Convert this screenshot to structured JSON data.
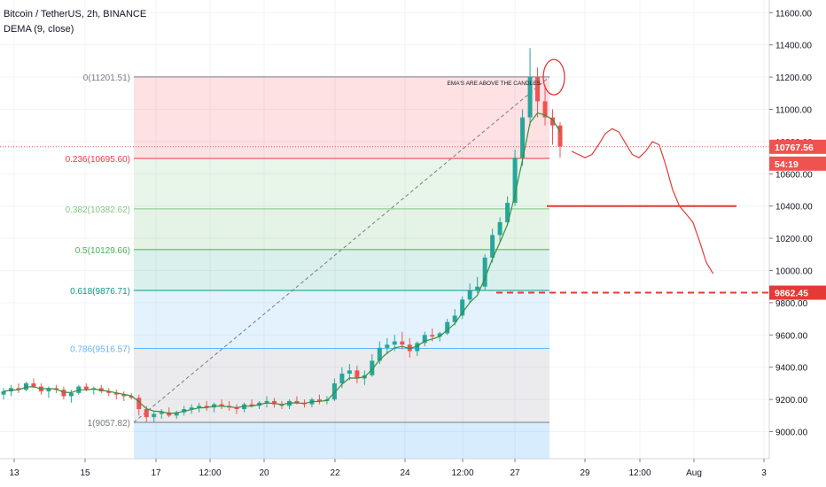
{
  "header": {
    "symbol": "Bitcoin / TetherUS, 2h, BINANCE",
    "indicator": "DEMA (9, close)"
  },
  "chart_data": {
    "type": "candlestick",
    "title": "Bitcoin / TetherUS, 2h, BINANCE",
    "indicator": "DEMA (9, close)",
    "ylim": [
      8880,
      11800
    ],
    "y_ticks": [
      "9000.00",
      "9200.00",
      "9400.00",
      "9600.00",
      "9800.00",
      "10000.00",
      "10200.00",
      "10400.00",
      "10600.00",
      "10800.00",
      "11000.00",
      "11200.00",
      "11400.00",
      "11600.00"
    ],
    "x_ticks": [
      "13",
      "15",
      "17",
      "12:00",
      "20",
      "22",
      "24",
      "12:00",
      "27",
      "29",
      "12:00",
      "Aug",
      "3"
    ],
    "price_label": "10767.56",
    "countdown_label": "54:19",
    "target_label": "9862.45",
    "price_line": 10767.56,
    "target_line": 9862.45,
    "support_line": 10400,
    "fib_levels": [
      {
        "ratio": "0",
        "price": 11201.51,
        "label": "0(11201.51)",
        "color": "#787b86"
      },
      {
        "ratio": "0.236",
        "price": 10695.6,
        "label": "0.236(10695.60)",
        "color": "#f23645"
      },
      {
        "ratio": "0.382",
        "price": 10382.62,
        "label": "0.382(10382.62)",
        "color": "#81c784"
      },
      {
        "ratio": "0.5",
        "price": 10129.66,
        "label": "0.5(10129.66)",
        "color": "#4caf50"
      },
      {
        "ratio": "0.618",
        "price": 9876.71,
        "label": "0.618(9876.71)",
        "color": "#089981"
      },
      {
        "ratio": "0.786",
        "price": 9516.57,
        "label": "0.786(9516.57)",
        "color": "#64b5f6"
      },
      {
        "ratio": "1",
        "price": 9057.82,
        "label": "1(9057.82)",
        "color": "#787b86"
      }
    ],
    "annotation": "EMA'S ARE ABOVE THE CANDLES",
    "price_path": [
      [
        9230,
        9270,
        9200,
        9250
      ],
      [
        9250,
        9290,
        9220,
        9270
      ],
      [
        9270,
        9300,
        9240,
        9260
      ],
      [
        9260,
        9310,
        9250,
        9300
      ],
      [
        9300,
        9330,
        9270,
        9280
      ],
      [
        9280,
        9300,
        9230,
        9250
      ],
      [
        9250,
        9280,
        9210,
        9270
      ],
      [
        9270,
        9290,
        9240,
        9260
      ],
      [
        9260,
        9280,
        9200,
        9220
      ],
      [
        9220,
        9260,
        9180,
        9240
      ],
      [
        9240,
        9290,
        9230,
        9280
      ],
      [
        9280,
        9300,
        9250,
        9260
      ],
      [
        9260,
        9280,
        9230,
        9270
      ],
      [
        9270,
        9290,
        9240,
        9250
      ],
      [
        9250,
        9270,
        9220,
        9240
      ],
      [
        9240,
        9260,
        9200,
        9230
      ],
      [
        9230,
        9250,
        9190,
        9220
      ],
      [
        9220,
        9240,
        9200,
        9210
      ],
      [
        9210,
        9230,
        9100,
        9140
      ],
      [
        9140,
        9160,
        9060,
        9090
      ],
      [
        9090,
        9130,
        9060,
        9110
      ],
      [
        9110,
        9140,
        9080,
        9120
      ],
      [
        9120,
        9150,
        9090,
        9100
      ],
      [
        9100,
        9130,
        9080,
        9120
      ],
      [
        9120,
        9160,
        9100,
        9140
      ],
      [
        9140,
        9170,
        9110,
        9150
      ],
      [
        9150,
        9180,
        9120,
        9160
      ],
      [
        9160,
        9190,
        9130,
        9150
      ],
      [
        9150,
        9180,
        9120,
        9170
      ],
      [
        9170,
        9200,
        9140,
        9160
      ],
      [
        9160,
        9190,
        9130,
        9150
      ],
      [
        9150,
        9170,
        9110,
        9140
      ],
      [
        9140,
        9180,
        9120,
        9170
      ],
      [
        9170,
        9200,
        9150,
        9160
      ],
      [
        9160,
        9190,
        9140,
        9180
      ],
      [
        9180,
        9220,
        9150,
        9190
      ],
      [
        9190,
        9210,
        9150,
        9170
      ],
      [
        9170,
        9190,
        9140,
        9160
      ],
      [
        9160,
        9200,
        9140,
        9190
      ],
      [
        9190,
        9220,
        9170,
        9180
      ],
      [
        9180,
        9200,
        9150,
        9170
      ],
      [
        9170,
        9210,
        9150,
        9200
      ],
      [
        9200,
        9230,
        9170,
        9190
      ],
      [
        9190,
        9220,
        9170,
        9200
      ],
      [
        9200,
        9330,
        9190,
        9300
      ],
      [
        9300,
        9400,
        9270,
        9360
      ],
      [
        9360,
        9420,
        9320,
        9380
      ],
      [
        9380,
        9410,
        9300,
        9330
      ],
      [
        9330,
        9380,
        9290,
        9350
      ],
      [
        9350,
        9480,
        9340,
        9440
      ],
      [
        9440,
        9560,
        9420,
        9520
      ],
      [
        9520,
        9580,
        9480,
        9540
      ],
      [
        9540,
        9600,
        9500,
        9560
      ],
      [
        9560,
        9620,
        9510,
        9540
      ],
      [
        9540,
        9580,
        9460,
        9500
      ],
      [
        9500,
        9560,
        9470,
        9550
      ],
      [
        9550,
        9620,
        9530,
        9600
      ],
      [
        9600,
        9640,
        9560,
        9590
      ],
      [
        9590,
        9620,
        9560,
        9610
      ],
      [
        9610,
        9700,
        9600,
        9680
      ],
      [
        9680,
        9760,
        9660,
        9720
      ],
      [
        9720,
        9840,
        9700,
        9820
      ],
      [
        9820,
        9920,
        9800,
        9880
      ],
      [
        9880,
        9960,
        9860,
        9900
      ],
      [
        9900,
        10100,
        9880,
        10080
      ],
      [
        10080,
        10260,
        10050,
        10220
      ],
      [
        10220,
        10330,
        10180,
        10300
      ],
      [
        10300,
        10460,
        10280,
        10420
      ],
      [
        10420,
        10750,
        10400,
        10700
      ],
      [
        10700,
        11000,
        10650,
        10950
      ],
      [
        10950,
        11380,
        10900,
        11200
      ],
      [
        11200,
        11260,
        10950,
        11050
      ],
      [
        11050,
        11150,
        10900,
        10950
      ],
      [
        10950,
        11000,
        10780,
        10900
      ],
      [
        10900,
        10920,
        10700,
        10770
      ]
    ],
    "projection_path": [
      [
        10740,
        10720,
        10700,
        10720,
        10780,
        10850,
        10880,
        10860,
        10790,
        10720,
        10700,
        10740,
        10800,
        10780,
        10650,
        10500,
        10400,
        10350,
        10300,
        10180,
        10050,
        9980
      ]
    ]
  }
}
